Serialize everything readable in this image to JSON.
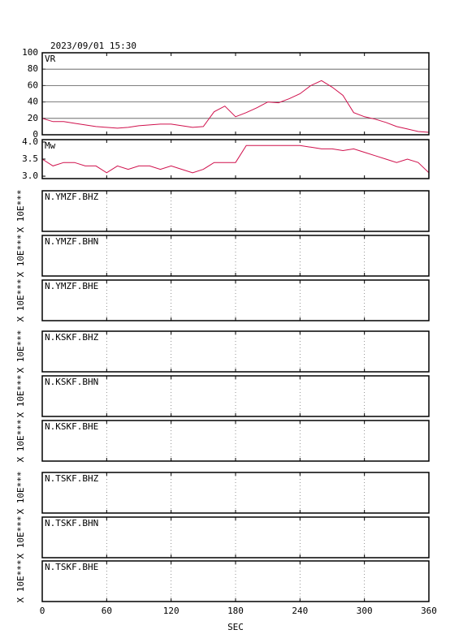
{
  "chart_data": [
    {
      "type": "line",
      "title": "2023/09/01  15:30",
      "label": "VR",
      "color": "#d0104c",
      "ylim": [
        0,
        100
      ],
      "yticks": [
        0,
        20,
        40,
        60,
        80,
        100
      ],
      "grid": true,
      "x": [
        0,
        10,
        20,
        30,
        40,
        50,
        60,
        70,
        80,
        90,
        100,
        110,
        120,
        130,
        140,
        150,
        160,
        170,
        180,
        190,
        200,
        210,
        220,
        230,
        240,
        250,
        260,
        270,
        280,
        290,
        300,
        310,
        320,
        330,
        340,
        350,
        360
      ],
      "values": [
        20,
        16,
        16,
        14,
        12,
        10,
        9,
        8,
        9,
        11,
        12,
        13,
        13,
        11,
        9,
        10,
        28,
        35,
        22,
        27,
        33,
        40,
        39,
        44,
        50,
        60,
        66,
        58,
        48,
        27,
        22,
        19,
        15,
        10,
        7,
        4,
        3
      ]
    },
    {
      "type": "line",
      "label": "Mw",
      "color": "#d0104c",
      "ylim": [
        2.93,
        4.07
      ],
      "yticks": [
        {
          "value": 3,
          "label": "3.0"
        },
        3.5,
        {
          "value": 4,
          "label": "4.0"
        }
      ],
      "grid": false,
      "x": [
        0,
        10,
        20,
        30,
        40,
        50,
        60,
        70,
        80,
        90,
        100,
        110,
        120,
        130,
        140,
        150,
        160,
        170,
        180,
        190,
        200,
        210,
        220,
        230,
        240,
        250,
        260,
        270,
        280,
        290,
        300,
        310,
        320,
        330,
        340,
        350,
        360
      ],
      "values": [
        3.5,
        3.3,
        3.4,
        3.4,
        3.3,
        3.3,
        3.1,
        3.3,
        3.2,
        3.3,
        3.3,
        3.2,
        3.3,
        3.2,
        3.1,
        3.2,
        3.4,
        3.4,
        3.4,
        3.9,
        3.9,
        3.9,
        3.9,
        3.9,
        3.9,
        3.85,
        3.8,
        3.8,
        3.75,
        3.8,
        3.7,
        3.6,
        3.5,
        3.4,
        3.5,
        3.4,
        3.1
      ]
    },
    {
      "type": "waveform",
      "label": "N.YMZF.BHZ",
      "ylabel": "X 10E***"
    },
    {
      "type": "waveform",
      "label": "N.YMZF.BHN",
      "ylabel": "X 10E***"
    },
    {
      "type": "waveform",
      "label": "N.YMZF.BHE",
      "ylabel": "X 10E***"
    },
    {
      "type": "waveform",
      "label": "N.KSKF.BHZ",
      "ylabel": "X 10E***"
    },
    {
      "type": "waveform",
      "label": "N.KSKF.BHN",
      "ylabel": "X 10E***"
    },
    {
      "type": "waveform",
      "label": "N.KSKF.BHE",
      "ylabel": "X 10E***"
    },
    {
      "type": "waveform",
      "label": "N.TSKF.BHZ",
      "ylabel": "X 10E***"
    },
    {
      "type": "waveform",
      "label": "N.TSKF.BHN",
      "ylabel": "X 10E***"
    },
    {
      "type": "waveform",
      "label": "N.TSKF.BHE",
      "ylabel": "X 10E***",
      "xlim": [
        0,
        360
      ],
      "xticks": [
        0,
        60,
        120,
        180,
        240,
        300,
        360
      ],
      "xlabel": "SEC"
    }
  ]
}
